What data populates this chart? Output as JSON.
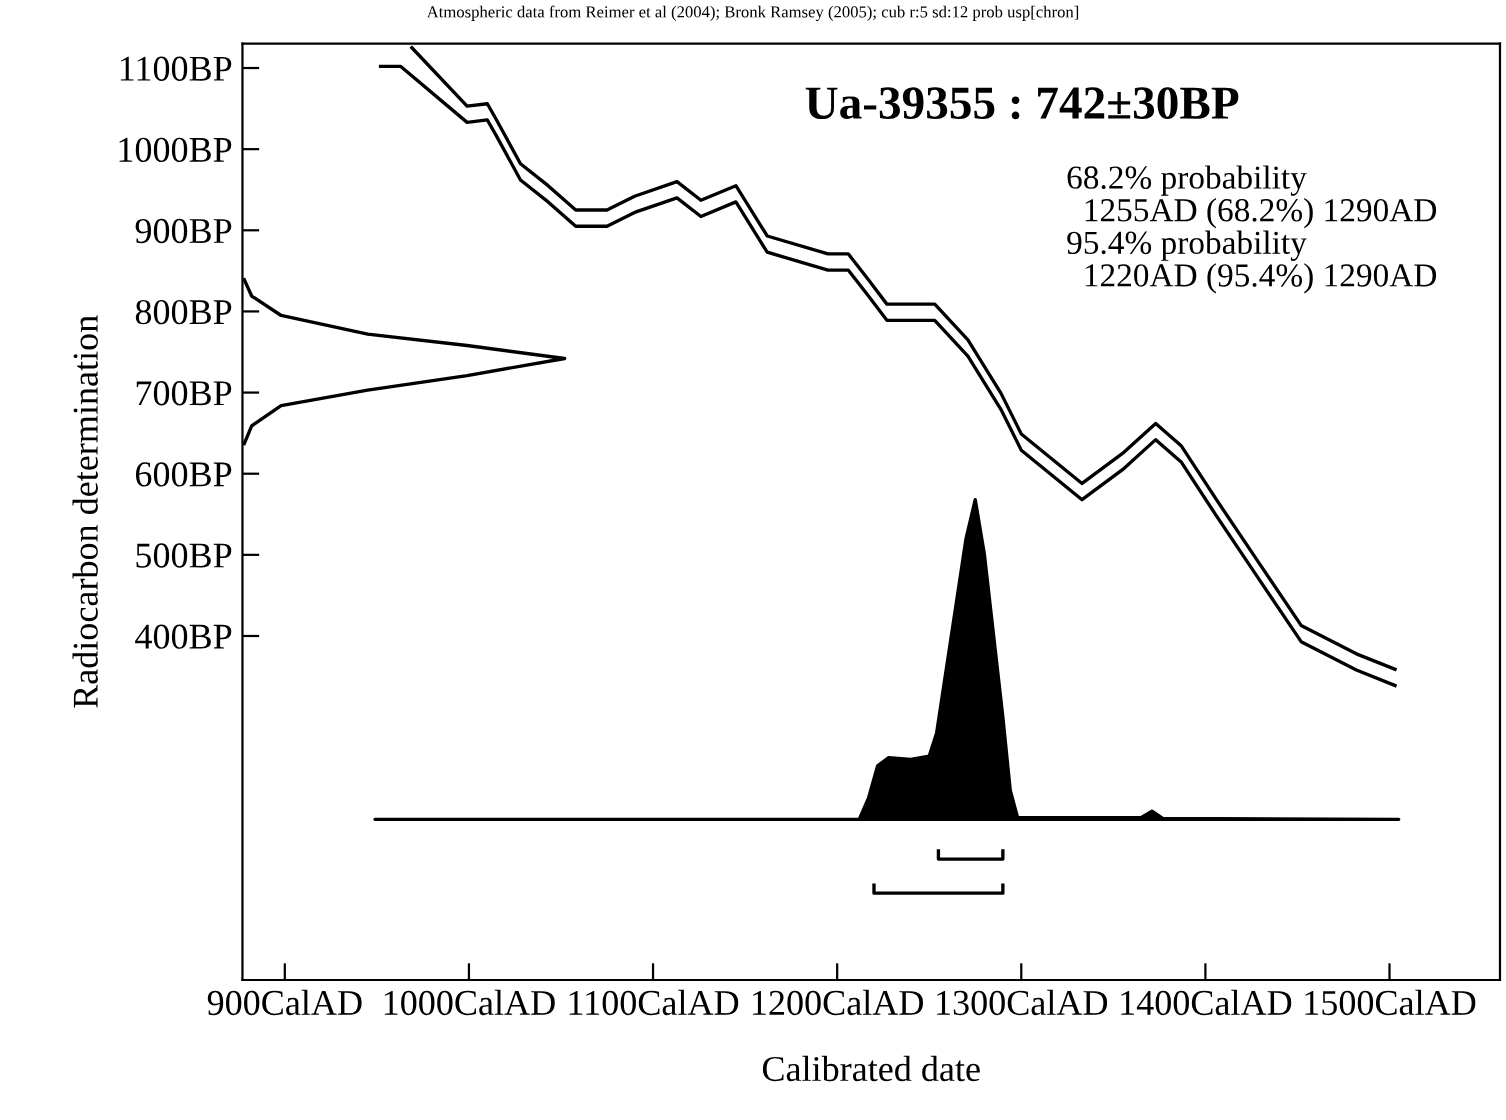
{
  "chart_data": {
    "type": "line",
    "title": "Ua-39355 : 742±30BP",
    "xlabel": "Calibrated date",
    "ylabel": "Radiocarbon determination",
    "annotations": [
      "Atmospheric data from Reimer et al (2004); Bronk Ramsey (2005); cub r:5 sd:12 prob usp[chron]",
      "68.2% probability",
      "  1255AD (68.2%) 1290AD",
      "95.4% probability",
      "  1220AD (95.4%) 1290AD"
    ],
    "xlim": [
      877,
      1560
    ],
    "ylim": [
      -24,
      1130
    ],
    "xticks": [
      {
        "value": 900,
        "label": "900CalAD"
      },
      {
        "value": 1000,
        "label": "1000CalAD"
      },
      {
        "value": 1100,
        "label": "1100CalAD"
      },
      {
        "value": 1200,
        "label": "1200CalAD"
      },
      {
        "value": 1300,
        "label": "1300CalAD"
      },
      {
        "value": 1400,
        "label": "1400CalAD"
      },
      {
        "value": 1500,
        "label": "1500CalAD"
      }
    ],
    "yticks": [
      {
        "value": 400,
        "label": "400BP"
      },
      {
        "value": 500,
        "label": "500BP"
      },
      {
        "value": 600,
        "label": "600BP"
      },
      {
        "value": 700,
        "label": "700BP"
      },
      {
        "value": 800,
        "label": "800BP"
      },
      {
        "value": 900,
        "label": "900BP"
      },
      {
        "value": 1000,
        "label": "1000BP"
      },
      {
        "value": 1100,
        "label": "1100BP"
      }
    ],
    "grid": false,
    "legend": false,
    "series": [
      {
        "color": "#000000",
        "x": [
          969,
          999,
          1010,
          1015,
          1028,
          1043,
          1058,
          1075,
          1090,
          1113,
          1126,
          1145,
          1162,
          1195,
          1206,
          1217,
          1227,
          1253,
          1271,
          1289,
          1300,
          1333,
          1355,
          1373,
          1387,
          1406,
          1430,
          1452,
          1482,
          1503
        ],
        "values": [
          1125,
          1053,
          1056,
          1036,
          982,
          955,
          925,
          925,
          942,
          960,
          937,
          955,
          893,
          871,
          871,
          839,
          809,
          809,
          765,
          699,
          649,
          588,
          625,
          662,
          634,
          568,
          487,
          413,
          378,
          359
        ]
      },
      {
        "color": "#000000",
        "x": [
          952,
          963,
          999,
          1010,
          1015,
          1028,
          1043,
          1058,
          1075,
          1090,
          1113,
          1126,
          1145,
          1162,
          1195,
          1206,
          1217,
          1227,
          1253,
          1271,
          1289,
          1300,
          1333,
          1355,
          1373,
          1387,
          1406,
          1430,
          1452,
          1482,
          1503
        ],
        "values": [
          1102,
          1102,
          1033,
          1036,
          1016,
          962,
          935,
          905,
          905,
          922,
          940,
          917,
          935,
          873,
          851,
          851,
          819,
          789,
          789,
          745,
          679,
          629,
          568,
          605,
          642,
          614,
          548,
          467,
          393,
          358,
          339
        ]
      },
      {
        "color": "#000000",
        "x": [
          878,
          882,
          898,
          945,
          999,
          1052,
          999,
          945,
          898,
          882,
          878
        ],
        "values": [
          839,
          819,
          795,
          772,
          758,
          742,
          721,
          703,
          684,
          659,
          637
        ]
      },
      {
        "type": "area",
        "color": "#000000",
        "x": [
          949,
          1212,
          1217,
          1222,
          1228,
          1240,
          1250,
          1254,
          1262,
          1270,
          1275,
          1280,
          1285,
          1290,
          1294,
          1298,
          1365,
          1371,
          1377,
          1505
        ],
        "values": [
          174,
          174,
          200,
          240,
          250,
          248,
          252,
          280,
          400,
          520,
          568,
          500,
          400,
          300,
          210,
          176,
          176,
          184,
          175,
          174
        ]
      },
      {
        "color": "#000000",
        "x": [
          1255,
          1255,
          1290,
          1290
        ],
        "values": [
          135,
          125,
          125,
          135
        ]
      },
      {
        "color": "#000000",
        "x": [
          1220,
          1220,
          1290,
          1290
        ],
        "values": [
          93,
          83,
          83,
          93
        ]
      }
    ]
  }
}
